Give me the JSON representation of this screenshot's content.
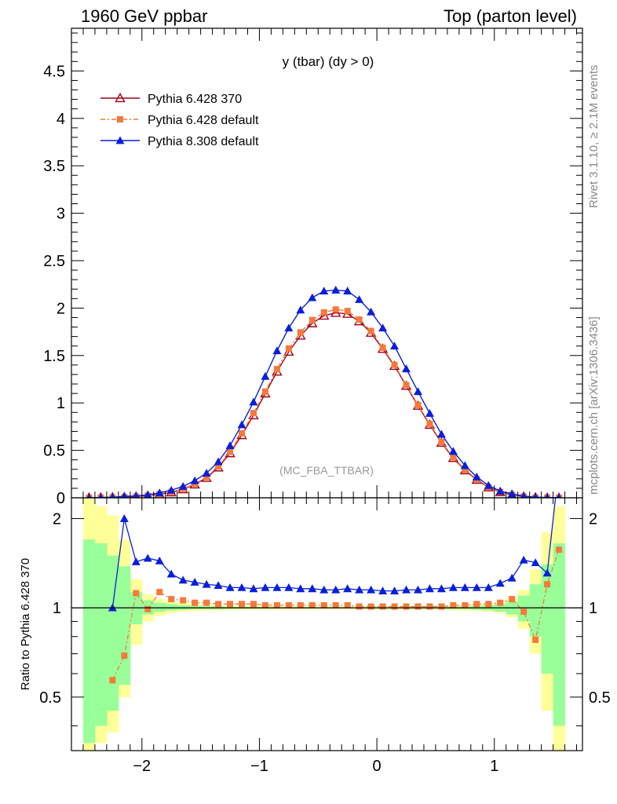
{
  "header": {
    "left_title": "1960 GeV ppbar",
    "right_title": "Top (parton level)"
  },
  "side_texts": {
    "rivet": "Rivet 3.1.10, ≥ 2.1M events",
    "mcplots": "mcplots.cern.ch [arXiv:1306.3436]"
  },
  "chart_data": {
    "type": "line",
    "title": "y (tbar) (dy > 0)",
    "analysis_label": "(MC_FBA_TTBAR)",
    "ylabel_ratio": "Ratio to Pythia 6.428 370",
    "x": [
      -2.45,
      -2.35,
      -2.25,
      -2.15,
      -2.05,
      -1.95,
      -1.85,
      -1.75,
      -1.65,
      -1.55,
      -1.45,
      -1.35,
      -1.25,
      -1.15,
      -1.05,
      -0.95,
      -0.85,
      -0.75,
      -0.65,
      -0.55,
      -0.45,
      -0.35,
      -0.25,
      -0.15,
      -0.05,
      0.05,
      0.15,
      0.25,
      0.35,
      0.45,
      0.55,
      0.65,
      0.75,
      0.85,
      0.95,
      1.05,
      1.15,
      1.25,
      1.35,
      1.45,
      1.55
    ],
    "xlim": [
      -2.6,
      1.75
    ],
    "xticks": [
      "−2",
      "−1",
      "0",
      "1"
    ],
    "main": {
      "ylim": [
        0,
        4.95
      ],
      "yticks": [
        "0",
        "0.5",
        "1",
        "1.5",
        "2",
        "2.5",
        "3",
        "3.5",
        "4",
        "4.5"
      ],
      "series": [
        {
          "name": "Pythia 6.428 370",
          "color": "#a00018",
          "marker": "open-triangle",
          "values": [
            0.003,
            0.004,
            0.006,
            0.008,
            0.013,
            0.022,
            0.036,
            0.058,
            0.09,
            0.14,
            0.21,
            0.32,
            0.47,
            0.66,
            0.87,
            1.1,
            1.33,
            1.54,
            1.71,
            1.84,
            1.92,
            1.95,
            1.94,
            1.86,
            1.74,
            1.57,
            1.39,
            1.18,
            0.97,
            0.77,
            0.58,
            0.42,
            0.29,
            0.19,
            0.11,
            0.06,
            0.03,
            0.013,
            0.005,
            0.002,
            0.001
          ]
        },
        {
          "name": "Pythia 6.428 default",
          "color": "#f5793a",
          "marker": "square",
          "dashed": true,
          "values": [
            0.002,
            0.003,
            0.004,
            0.007,
            0.012,
            0.022,
            0.04,
            0.062,
            0.095,
            0.146,
            0.218,
            0.331,
            0.485,
            0.68,
            0.893,
            1.12,
            1.357,
            1.574,
            1.744,
            1.874,
            1.955,
            1.985,
            1.969,
            1.879,
            1.758,
            1.582,
            1.401,
            1.188,
            0.978,
            0.779,
            0.587,
            0.427,
            0.296,
            0.195,
            0.113,
            0.062,
            0.032,
            0.013,
            0.004,
            0.0024,
            0.0016
          ]
        },
        {
          "name": "Pythia 8.308 default",
          "color": "#0a1fd8",
          "marker": "triangle",
          "values": [
            0.001,
            0.002,
            0.006,
            0.016,
            0.019,
            0.032,
            0.052,
            0.08,
            0.12,
            0.18,
            0.26,
            0.38,
            0.55,
            0.77,
            1.01,
            1.28,
            1.55,
            1.79,
            1.98,
            2.11,
            2.18,
            2.19,
            2.18,
            2.09,
            1.96,
            1.79,
            1.6,
            1.36,
            1.12,
            0.89,
            0.67,
            0.49,
            0.34,
            0.22,
            0.13,
            0.07,
            0.042,
            0.018,
            0.0068,
            0.0028,
            0.0012
          ]
        }
      ]
    },
    "ratio": {
      "ylim": [
        0.33,
        2.35
      ],
      "yticks": [
        "0.5",
        "1",
        "2"
      ],
      "series": [
        {
          "name": "Pythia 6.428 default",
          "color": "#f5793a",
          "marker": "square",
          "values": [
            null,
            null,
            0.57,
            0.69,
            1.12,
            0.99,
            1.13,
            1.07,
            1.06,
            1.04,
            1.04,
            1.03,
            1.03,
            1.03,
            1.03,
            1.02,
            1.02,
            1.02,
            1.02,
            1.02,
            1.02,
            1.02,
            1.02,
            1.01,
            1.01,
            1.01,
            1.01,
            1.01,
            1.01,
            1.01,
            1.01,
            1.02,
            1.02,
            1.03,
            1.03,
            1.04,
            1.07,
            0.97,
            0.78,
            1.2,
            1.57
          ]
        },
        {
          "name": "Pythia 8.308 default",
          "color": "#0a1fd8",
          "marker": "triangle",
          "values": [
            null,
            null,
            1.0,
            2.0,
            1.43,
            1.47,
            1.44,
            1.3,
            1.24,
            1.22,
            1.2,
            1.19,
            1.17,
            1.17,
            1.16,
            1.17,
            1.17,
            1.17,
            1.16,
            1.16,
            1.15,
            1.15,
            1.16,
            1.15,
            1.15,
            1.14,
            1.14,
            1.15,
            1.15,
            1.16,
            1.16,
            1.17,
            1.17,
            1.17,
            1.17,
            1.21,
            1.26,
            1.45,
            1.42,
            1.31,
            3.0
          ]
        }
      ],
      "band_green": [
        [
          0.35,
          1.7
        ],
        [
          0.4,
          1.65
        ],
        [
          0.45,
          1.5
        ],
        [
          0.55,
          1.38
        ],
        [
          0.88,
          1.13
        ],
        [
          0.95,
          1.06
        ],
        [
          0.97,
          1.04
        ],
        [
          0.98,
          1.03
        ],
        [
          0.985,
          1.02
        ],
        [
          0.99,
          1.015
        ],
        [
          0.99,
          1.012
        ],
        [
          0.99,
          1.01
        ],
        [
          0.992,
          1.009
        ],
        [
          0.993,
          1.008
        ],
        [
          0.994,
          1.007
        ],
        [
          0.994,
          1.006
        ],
        [
          0.995,
          1.006
        ],
        [
          0.995,
          1.005
        ],
        [
          0.995,
          1.005
        ],
        [
          0.996,
          1.005
        ],
        [
          0.996,
          1.004
        ],
        [
          0.996,
          1.004
        ],
        [
          0.996,
          1.004
        ],
        [
          0.996,
          1.004
        ],
        [
          0.996,
          1.005
        ],
        [
          0.995,
          1.005
        ],
        [
          0.995,
          1.005
        ],
        [
          0.995,
          1.006
        ],
        [
          0.994,
          1.006
        ],
        [
          0.993,
          1.007
        ],
        [
          0.992,
          1.008
        ],
        [
          0.99,
          1.01
        ],
        [
          0.99,
          1.012
        ],
        [
          0.985,
          1.015
        ],
        [
          0.98,
          1.02
        ],
        [
          0.97,
          1.03
        ],
        [
          0.95,
          1.05
        ],
        [
          0.9,
          1.1
        ],
        [
          0.8,
          1.2
        ],
        [
          0.6,
          1.4
        ],
        [
          0.4,
          1.65
        ]
      ],
      "band_yellow": [
        [
          0.3,
          2.4
        ],
        [
          0.35,
          2.2
        ],
        [
          0.38,
          2.05
        ],
        [
          0.5,
          1.7
        ],
        [
          0.75,
          1.25
        ],
        [
          0.9,
          1.11
        ],
        [
          0.94,
          1.07
        ],
        [
          0.96,
          1.05
        ],
        [
          0.97,
          1.04
        ],
        [
          0.975,
          1.03
        ],
        [
          0.98,
          1.025
        ],
        [
          0.982,
          1.02
        ],
        [
          0.984,
          1.018
        ],
        [
          0.985,
          1.016
        ],
        [
          0.986,
          1.015
        ],
        [
          0.987,
          1.014
        ],
        [
          0.988,
          1.013
        ],
        [
          0.988,
          1.012
        ],
        [
          0.989,
          1.012
        ],
        [
          0.989,
          1.011
        ],
        [
          0.99,
          1.011
        ],
        [
          0.99,
          1.01
        ],
        [
          0.99,
          1.01
        ],
        [
          0.99,
          1.011
        ],
        [
          0.989,
          1.011
        ],
        [
          0.989,
          1.012
        ],
        [
          0.988,
          1.012
        ],
        [
          0.988,
          1.013
        ],
        [
          0.987,
          1.014
        ],
        [
          0.986,
          1.015
        ],
        [
          0.985,
          1.016
        ],
        [
          0.983,
          1.018
        ],
        [
          0.98,
          1.02
        ],
        [
          0.977,
          1.025
        ],
        [
          0.97,
          1.03
        ],
        [
          0.96,
          1.04
        ],
        [
          0.93,
          1.08
        ],
        [
          0.85,
          1.15
        ],
        [
          0.7,
          1.35
        ],
        [
          0.45,
          1.8
        ],
        [
          0.33,
          2.2
        ]
      ]
    }
  }
}
